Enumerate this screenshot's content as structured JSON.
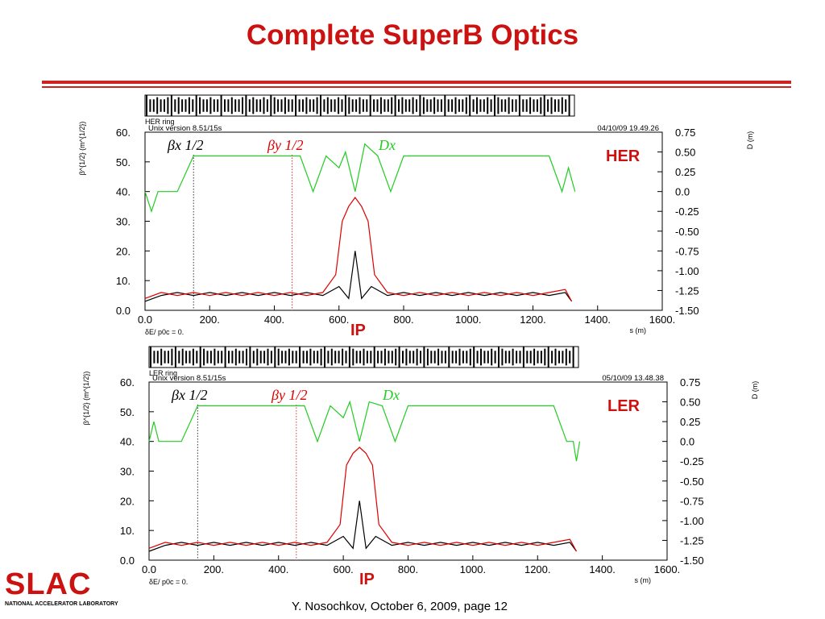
{
  "slide": {
    "title": "Complete SuperB Optics",
    "footer": "Y. Nosochkov, October 6, 2009,  page 12",
    "logo": {
      "text": "SLAC",
      "subtitle": "NATIONAL ACCELERATOR LABORATORY"
    },
    "colors": {
      "title": "#cc1111",
      "rule": "#cc2222",
      "label": "#cc1111"
    }
  },
  "chart_data": [
    {
      "type": "line",
      "ring_label": "HER ring",
      "side_label": "HER",
      "version": "Unix version 8.51/15s",
      "timestamp": "04/10/09  19.49.26",
      "ylabel_left": "β^{1/2} (m^{1/2})",
      "ylabel_right": "D (m)",
      "xlabel": "s (m)",
      "footnote": "δE/ p0c  =  0.",
      "ip_label": "IP",
      "xlim": [
        0,
        1600
      ],
      "ylim_left": [
        0,
        60
      ],
      "ylim_right": [
        -1.5,
        0.75
      ],
      "x_ticks": [
        "0.0",
        "200.",
        "400.",
        "600.",
        "800.",
        "1000.",
        "1200.",
        "1400.",
        "1600."
      ],
      "y_left_ticks": [
        "0.0",
        "10.",
        "20.",
        "30.",
        "40.",
        "50.",
        "60."
      ],
      "y_right_ticks": [
        "-1.50",
        "-1.25",
        "-1.00",
        "-0.75",
        "-0.50",
        "-0.25",
        "0.0",
        "0.25",
        "0.50",
        "0.75"
      ],
      "markers": [
        150,
        455
      ],
      "legend": [
        {
          "label": "βx 1/2",
          "color": "#000000"
        },
        {
          "label": "βy 1/2",
          "color": "#dd0000"
        },
        {
          "label": "Dx",
          "color": "#22cc22"
        }
      ],
      "series": [
        {
          "name": "βx 1/2",
          "color": "#000000",
          "axis": "left",
          "x": [
            0,
            50,
            100,
            150,
            200,
            250,
            300,
            350,
            400,
            450,
            500,
            550,
            600,
            630,
            650,
            670,
            700,
            750,
            800,
            850,
            900,
            950,
            1000,
            1050,
            1100,
            1150,
            1200,
            1250,
            1300,
            1320
          ],
          "y": [
            3,
            5,
            6,
            5,
            6,
            5,
            6,
            5,
            6,
            5,
            6,
            5,
            8,
            4,
            20,
            4,
            8,
            5,
            6,
            5,
            6,
            5,
            6,
            5,
            6,
            5,
            6,
            5,
            6,
            3
          ]
        },
        {
          "name": "βy 1/2",
          "color": "#dd0000",
          "axis": "left",
          "x": [
            0,
            50,
            100,
            150,
            200,
            250,
            300,
            350,
            400,
            450,
            500,
            550,
            590,
            610,
            630,
            650,
            670,
            690,
            710,
            750,
            800,
            850,
            900,
            950,
            1000,
            1050,
            1100,
            1150,
            1200,
            1250,
            1300,
            1320
          ],
          "y": [
            4,
            6,
            5,
            6,
            5,
            6,
            5,
            6,
            5,
            6,
            5,
            6,
            12,
            30,
            35,
            38,
            35,
            30,
            12,
            6,
            5,
            6,
            5,
            6,
            5,
            6,
            5,
            6,
            5,
            6,
            7,
            3
          ]
        },
        {
          "name": "Dx",
          "color": "#22cc22",
          "axis": "right",
          "x": [
            0,
            20,
            40,
            100,
            150,
            200,
            250,
            300,
            350,
            400,
            450,
            480,
            520,
            560,
            600,
            620,
            650,
            680,
            720,
            760,
            800,
            850,
            900,
            950,
            1000,
            1050,
            1100,
            1150,
            1200,
            1250,
            1290,
            1310,
            1330
          ],
          "y": [
            0.0,
            -0.25,
            0.0,
            0.0,
            0.45,
            0.45,
            0.45,
            0.45,
            0.45,
            0.45,
            0.45,
            0.45,
            0.0,
            0.45,
            0.3,
            0.5,
            0.0,
            0.6,
            0.45,
            0.0,
            0.45,
            0.45,
            0.45,
            0.45,
            0.45,
            0.45,
            0.45,
            0.45,
            0.45,
            0.45,
            0.0,
            0.3,
            0.0
          ]
        }
      ]
    },
    {
      "type": "line",
      "ring_label": "LER ring",
      "side_label": "LER",
      "version": "Unix version 8.51/15s",
      "timestamp": "05/10/09  13.48.38",
      "ylabel_left": "β^{1/2} (m^{1/2})",
      "ylabel_right": "D (m)",
      "xlabel": "s (m)",
      "footnote": "δE/ p0c  =  0.",
      "ip_label": "IP",
      "xlim": [
        0,
        1600
      ],
      "ylim_left": [
        0,
        60
      ],
      "ylim_right": [
        -1.5,
        0.75
      ],
      "x_ticks": [
        "0.0",
        "200.",
        "400.",
        "600.",
        "800.",
        "1000.",
        "1200.",
        "1400.",
        "1600."
      ],
      "y_left_ticks": [
        "0.0",
        "10.",
        "20.",
        "30.",
        "40.",
        "50.",
        "60."
      ],
      "y_right_ticks": [
        "-1.50",
        "-1.25",
        "-1.00",
        "-0.75",
        "-0.50",
        "-0.25",
        "0.0",
        "0.25",
        "0.50",
        "0.75"
      ],
      "markers": [
        150,
        455
      ],
      "legend": [
        {
          "label": "βx 1/2",
          "color": "#000000"
        },
        {
          "label": "βy 1/2",
          "color": "#dd0000"
        },
        {
          "label": "Dx",
          "color": "#22cc22"
        }
      ],
      "series": [
        {
          "name": "βx 1/2",
          "color": "#000000",
          "axis": "left",
          "x": [
            0,
            50,
            100,
            150,
            200,
            250,
            300,
            350,
            400,
            450,
            500,
            550,
            600,
            630,
            650,
            670,
            700,
            750,
            800,
            850,
            900,
            950,
            1000,
            1050,
            1100,
            1150,
            1200,
            1250,
            1300,
            1320
          ],
          "y": [
            3,
            5,
            6,
            5,
            6,
            5,
            6,
            5,
            6,
            5,
            6,
            5,
            8,
            4,
            20,
            4,
            8,
            5,
            6,
            5,
            6,
            5,
            6,
            5,
            6,
            5,
            6,
            5,
            6,
            3
          ]
        },
        {
          "name": "βy 1/2",
          "color": "#dd0000",
          "axis": "left",
          "x": [
            0,
            50,
            100,
            150,
            200,
            250,
            300,
            350,
            400,
            450,
            500,
            550,
            590,
            610,
            630,
            650,
            670,
            690,
            710,
            750,
            800,
            850,
            900,
            950,
            1000,
            1050,
            1100,
            1150,
            1200,
            1250,
            1300,
            1320
          ],
          "y": [
            4,
            6,
            5,
            6,
            5,
            6,
            5,
            6,
            5,
            6,
            5,
            6,
            12,
            32,
            36,
            38,
            36,
            32,
            12,
            6,
            5,
            6,
            5,
            6,
            5,
            6,
            5,
            6,
            5,
            6,
            7,
            3
          ]
        },
        {
          "name": "Dx",
          "color": "#22cc22",
          "axis": "right",
          "x": [
            0,
            15,
            30,
            100,
            150,
            200,
            250,
            300,
            350,
            400,
            450,
            480,
            520,
            560,
            600,
            620,
            650,
            680,
            720,
            760,
            800,
            850,
            900,
            950,
            1000,
            1050,
            1100,
            1150,
            1200,
            1250,
            1290,
            1310,
            1320,
            1330
          ],
          "y": [
            0.0,
            0.25,
            0.0,
            0.0,
            0.45,
            0.45,
            0.45,
            0.45,
            0.45,
            0.45,
            0.45,
            0.45,
            0.0,
            0.45,
            0.3,
            0.5,
            0.0,
            0.5,
            0.45,
            0.0,
            0.45,
            0.45,
            0.45,
            0.45,
            0.45,
            0.45,
            0.45,
            0.45,
            0.45,
            0.45,
            0.0,
            0.0,
            -0.25,
            0.0
          ]
        }
      ]
    }
  ]
}
